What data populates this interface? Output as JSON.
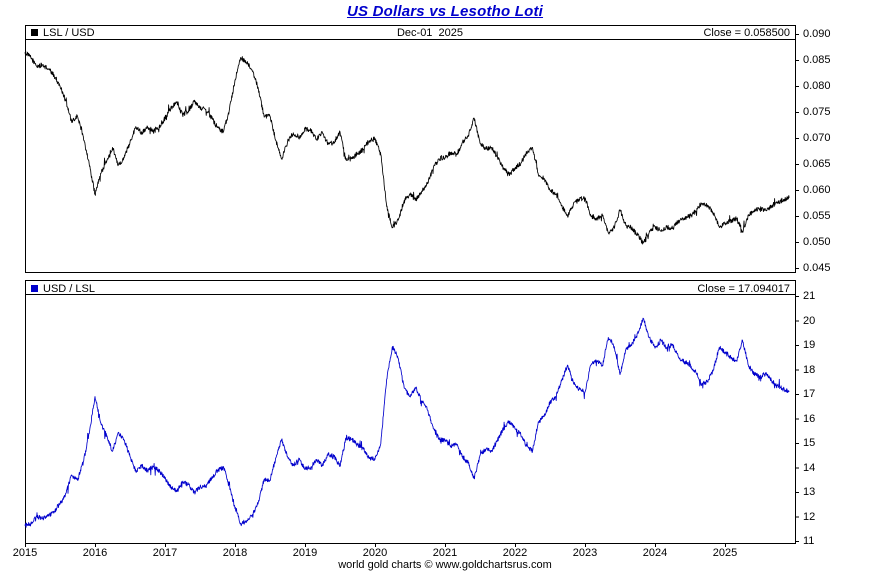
{
  "title": "US Dollars vs Lesotho Loti",
  "footer": "world gold charts © www.goldchartsrus.com",
  "colors": {
    "title": "#0000cc",
    "top_series": "#000000",
    "bottom_series": "#0000cc",
    "border": "#000000",
    "background": "#ffffff"
  },
  "panels": {
    "top": {
      "legend": "LSL / USD",
      "date_label": "Dec-01  2025",
      "close_label": "Close = 0.058500"
    },
    "bottom": {
      "legend": "USD / LSL",
      "close_label": "Close = 17.094017"
    }
  },
  "chart_data": [
    {
      "type": "line",
      "name": "LSL / USD",
      "color": "#000000",
      "grid": false,
      "legend_position": "top-left",
      "close": 0.0585,
      "close_date": "Dec-01 2025",
      "x_start_year": 2015.0,
      "x_step_years": 0.0833333,
      "x_unit": "monthly estimates, Jan 2015 - Dec 2025",
      "ylim": [
        0.045,
        0.09
      ],
      "y_ticks": [
        0.09,
        0.085,
        0.08,
        0.075,
        0.07,
        0.065,
        0.06,
        0.055,
        0.05,
        0.045
      ],
      "y_tick_labels": [
        "0.090",
        "0.085",
        "0.080",
        "0.075",
        "0.070",
        "0.065",
        "0.060",
        "0.055",
        "0.050",
        "0.045"
      ],
      "x_tick_labels": [
        "2015",
        "2016",
        "2017",
        "2018",
        "2019",
        "2020",
        "2021",
        "2022",
        "2023",
        "2024",
        "2025"
      ],
      "values": [
        0.0865,
        0.0855,
        0.0838,
        0.084,
        0.0833,
        0.082,
        0.08,
        0.0772,
        0.073,
        0.0742,
        0.0703,
        0.065,
        0.0592,
        0.0632,
        0.0655,
        0.0682,
        0.0648,
        0.0662,
        0.0692,
        0.0722,
        0.071,
        0.0722,
        0.0712,
        0.0722,
        0.0738,
        0.0758,
        0.0768,
        0.0745,
        0.0752,
        0.077,
        0.0758,
        0.0755,
        0.0738,
        0.072,
        0.0712,
        0.0752,
        0.0812,
        0.0855,
        0.0845,
        0.0828,
        0.0795,
        0.074,
        0.0742,
        0.0695,
        0.066,
        0.0692,
        0.071,
        0.0698,
        0.0718,
        0.0714,
        0.0698,
        0.071,
        0.0688,
        0.0692,
        0.0712,
        0.0658,
        0.066,
        0.067,
        0.0678,
        0.0695,
        0.0698,
        0.0668,
        0.0568,
        0.0528,
        0.0542,
        0.058,
        0.0592,
        0.058,
        0.0598,
        0.0612,
        0.0642,
        0.066,
        0.0662,
        0.0672,
        0.0668,
        0.0692,
        0.0705,
        0.0738,
        0.069,
        0.0678,
        0.0682,
        0.0662,
        0.0642,
        0.063,
        0.0642,
        0.0652,
        0.0672,
        0.0682,
        0.063,
        0.0622,
        0.06,
        0.0592,
        0.057,
        0.055,
        0.0572,
        0.0582,
        0.0585,
        0.055,
        0.0545,
        0.055,
        0.0518,
        0.0528,
        0.0562,
        0.0532,
        0.0527,
        0.0513,
        0.0498,
        0.0518,
        0.053,
        0.0521,
        0.0529,
        0.0526,
        0.054,
        0.0546,
        0.055,
        0.0559,
        0.0575,
        0.0571,
        0.0556,
        0.0529,
        0.0535,
        0.0541,
        0.0545,
        0.0521,
        0.055,
        0.0561,
        0.0565,
        0.0561,
        0.057,
        0.0576,
        0.0581,
        0.0585
      ]
    },
    {
      "type": "line",
      "name": "USD / LSL",
      "color": "#0000cc",
      "grid": false,
      "legend_position": "top-left",
      "close": 17.094017,
      "x_start_year": 2015.0,
      "x_step_years": 0.0833333,
      "x_unit": "monthly estimates, Jan 2015 - Dec 2025",
      "ylim": [
        11,
        21
      ],
      "y_ticks": [
        21,
        20,
        19,
        18,
        17,
        16,
        15,
        14,
        13,
        12,
        11
      ],
      "y_tick_labels": [
        "21",
        "20",
        "19",
        "18",
        "17",
        "16",
        "15",
        "14",
        "13",
        "12",
        "11"
      ],
      "x_tick_labels": [
        "2015",
        "2016",
        "2017",
        "2018",
        "2019",
        "2020",
        "2021",
        "2022",
        "2023",
        "2024",
        "2025"
      ],
      "values": [
        11.62,
        11.7,
        12.0,
        11.92,
        12.02,
        12.2,
        12.5,
        12.95,
        13.7,
        13.48,
        14.22,
        15.38,
        16.9,
        15.82,
        15.27,
        14.66,
        15.43,
        15.11,
        14.45,
        13.85,
        14.08,
        13.85,
        14.04,
        13.85,
        13.55,
        13.19,
        13.02,
        13.42,
        13.3,
        12.99,
        13.19,
        13.25,
        13.55,
        13.89,
        14.04,
        13.3,
        12.32,
        11.7,
        11.83,
        12.08,
        12.58,
        13.51,
        13.48,
        14.39,
        15.15,
        14.45,
        14.08,
        14.33,
        13.93,
        14.01,
        14.33,
        14.08,
        14.53,
        14.45,
        14.04,
        15.2,
        15.15,
        14.93,
        14.75,
        14.39,
        14.33,
        14.97,
        17.61,
        18.94,
        18.45,
        17.24,
        16.89,
        17.24,
        16.72,
        16.34,
        15.58,
        15.15,
        15.11,
        14.88,
        14.97,
        14.45,
        14.18,
        13.55,
        14.49,
        14.75,
        14.66,
        15.11,
        15.58,
        15.87,
        15.58,
        15.34,
        14.88,
        14.66,
        15.87,
        16.08,
        16.67,
        16.89,
        17.54,
        18.18,
        17.48,
        17.18,
        17.09,
        18.18,
        18.35,
        18.18,
        19.31,
        18.94,
        17.79,
        18.8,
        18.98,
        19.49,
        20.08,
        19.31,
        18.87,
        19.19,
        18.9,
        19.01,
        18.52,
        18.32,
        18.18,
        17.89,
        17.39,
        17.51,
        17.98,
        18.9,
        18.69,
        18.48,
        18.35,
        19.19,
        18.18,
        17.83,
        17.7,
        17.83,
        17.54,
        17.36,
        17.21,
        17.094
      ]
    }
  ]
}
